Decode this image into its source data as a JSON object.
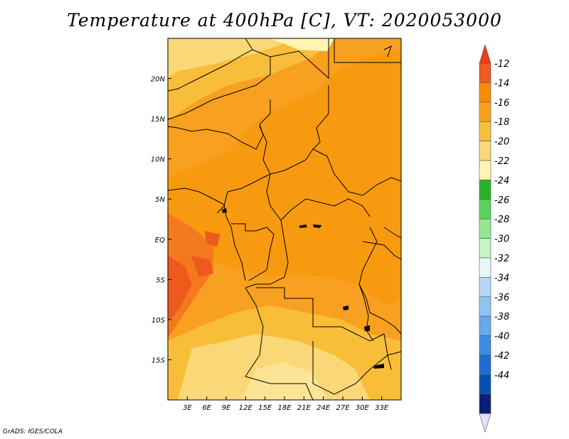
{
  "title": "Temperature at 400hPa [C], VT: 2020053000",
  "credit": "GrADS: IGES/COLA",
  "map": {
    "lon_range": [
      0,
      36
    ],
    "lat_range": [
      -20,
      25
    ],
    "lon_ticks": [
      {
        "value": 3,
        "label": "3E"
      },
      {
        "value": 6,
        "label": "6E"
      },
      {
        "value": 9,
        "label": "9E"
      },
      {
        "value": 12,
        "label": "12E"
      },
      {
        "value": 15,
        "label": "15E"
      },
      {
        "value": 18,
        "label": "18E"
      },
      {
        "value": 21,
        "label": "21E"
      },
      {
        "value": 24,
        "label": "24E"
      },
      {
        "value": 27,
        "label": "27E"
      },
      {
        "value": 30,
        "label": "30E"
      },
      {
        "value": 33,
        "label": "33E"
      }
    ],
    "lat_ticks": [
      {
        "value": 20,
        "label": "20N"
      },
      {
        "value": 15,
        "label": "15N"
      },
      {
        "value": 10,
        "label": "10N"
      },
      {
        "value": 5,
        "label": "5N"
      },
      {
        "value": 0,
        "label": "EQ"
      },
      {
        "value": -5,
        "label": "5S"
      },
      {
        "value": -10,
        "label": "10S"
      },
      {
        "value": -15,
        "label": "15S"
      }
    ]
  },
  "colorbar": {
    "labels": [
      "-12",
      "-14",
      "-16",
      "-18",
      "-20",
      "-22",
      "-24",
      "-26",
      "-28",
      "-30",
      "-32",
      "-34",
      "-36",
      "-38",
      "-40",
      "-42",
      "-44"
    ],
    "colors": [
      "#f05a1e",
      "#f88a0a",
      "#f8a020",
      "#f8be3a",
      "#fad878",
      "#fff5b0",
      "#28b428",
      "#5ad25a",
      "#94e694",
      "#c4f4c4",
      "#eaf6fa",
      "#b4d8f4",
      "#8cc4f0",
      "#64aaec",
      "#3c8ee0",
      "#1e6ed2",
      "#0a50b4",
      "#0a1e78"
    ],
    "top_arrow_color": "#f03c14",
    "bottom_arrow_color": "#e0e0f8"
  }
}
